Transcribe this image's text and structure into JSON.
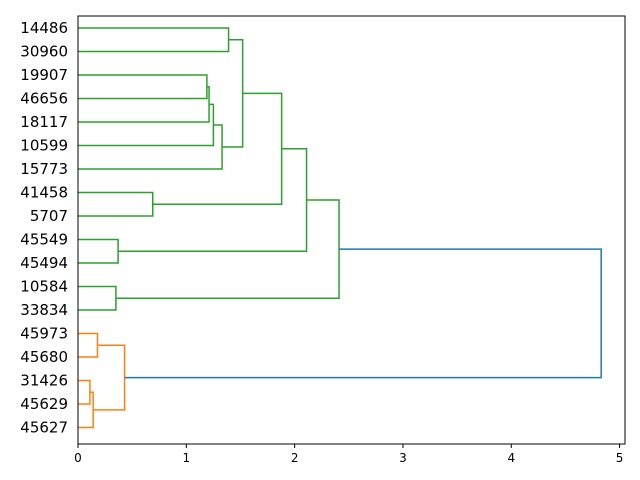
{
  "chart_data": {
    "type": "dendrogram",
    "orientation": "right",
    "leaves": [
      "14486",
      "30960",
      "19907",
      "46656",
      "18117",
      "10599",
      "15773",
      "41458",
      "5707",
      "45549",
      "45494",
      "10584",
      "33834",
      "45973",
      "45680",
      "31426",
      "45629",
      "45627"
    ],
    "xlim": [
      0,
      5.05
    ],
    "x_ticks": [
      0,
      1,
      2,
      3,
      4,
      5
    ],
    "x_tick_labels": [
      "0",
      "1",
      "2",
      "3",
      "4",
      "5"
    ],
    "colors": {
      "cluster_a": "#2ca02c",
      "cluster_b": "#ff7f0e",
      "link_above": "#1f77b4"
    },
    "merges": [
      {
        "a": "leaf:1",
        "b": "leaf:2",
        "height": 1.39,
        "color": "cluster_a"
      },
      {
        "a": "leaf:3",
        "b": "leaf:4",
        "height": 1.19,
        "color": "cluster_a"
      },
      {
        "a": "m:1",
        "b": "leaf:5",
        "height": 1.21,
        "color": "cluster_a"
      },
      {
        "a": "m:2",
        "b": "leaf:6",
        "height": 1.25,
        "color": "cluster_a"
      },
      {
        "a": "m:3",
        "b": "leaf:7",
        "height": 1.33,
        "color": "cluster_a"
      },
      {
        "a": "m:0",
        "b": "m:4",
        "height": 1.52,
        "color": "cluster_a"
      },
      {
        "a": "leaf:8",
        "b": "leaf:9",
        "height": 0.69,
        "color": "cluster_a"
      },
      {
        "a": "m:5",
        "b": "m:6",
        "height": 1.88,
        "color": "cluster_a"
      },
      {
        "a": "leaf:10",
        "b": "leaf:11",
        "height": 0.37,
        "color": "cluster_a"
      },
      {
        "a": "m:7",
        "b": "m:8",
        "height": 2.11,
        "color": "cluster_a"
      },
      {
        "a": "leaf:12",
        "b": "leaf:13",
        "height": 0.35,
        "color": "cluster_a"
      },
      {
        "a": "m:9",
        "b": "m:10",
        "height": 2.41,
        "color": "cluster_a"
      },
      {
        "a": "leaf:14",
        "b": "leaf:15",
        "height": 0.18,
        "color": "cluster_b"
      },
      {
        "a": "leaf:16",
        "b": "leaf:17",
        "height": 0.11,
        "color": "cluster_b"
      },
      {
        "a": "m:13",
        "b": "leaf:18",
        "height": 0.14,
        "color": "cluster_b"
      },
      {
        "a": "m:12",
        "b": "m:14",
        "height": 0.43,
        "color": "cluster_b"
      },
      {
        "a": "m:11",
        "b": "m:15",
        "height": 4.83,
        "color": "link_above"
      }
    ]
  }
}
